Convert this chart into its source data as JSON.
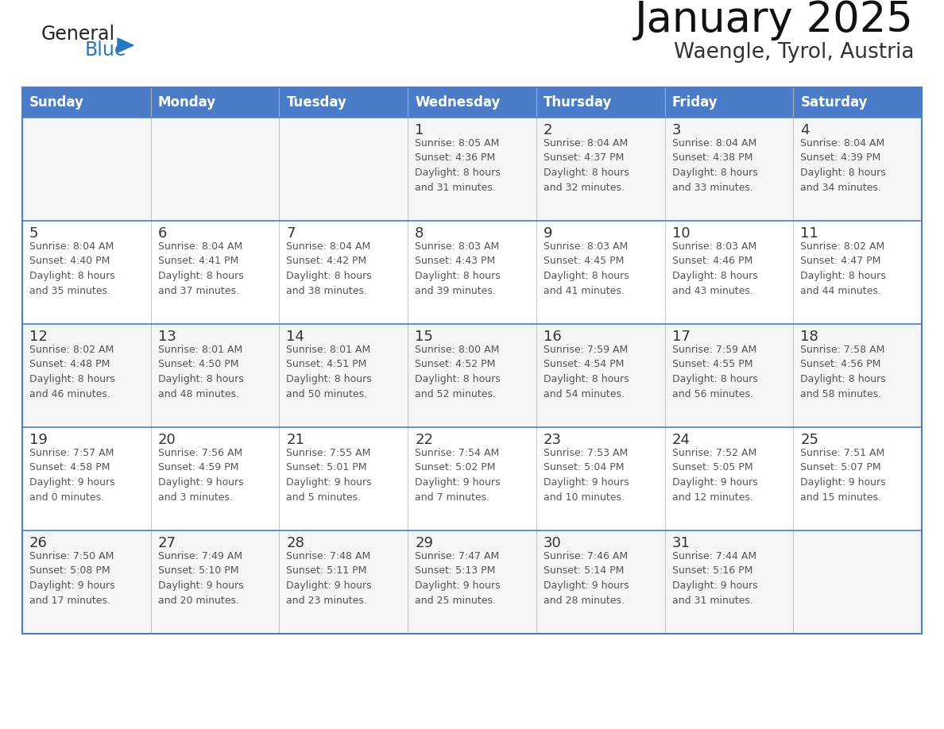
{
  "title": "January 2025",
  "subtitle": "Waengle, Tyrol, Austria",
  "header_color": "#4a7cc7",
  "header_text_color": "#FFFFFF",
  "days_of_week": [
    "Sunday",
    "Monday",
    "Tuesday",
    "Wednesday",
    "Thursday",
    "Friday",
    "Saturday"
  ],
  "background_color": "#FFFFFF",
  "border_color": "#4a7cc7",
  "text_color": "#444444",
  "day_number_color": "#333333",
  "info_text_color": "#555555",
  "logo_general_color": "#222222",
  "logo_blue_color": "#2878C0",
  "logo_triangle_color": "#2878C0",
  "title_color": "#111111",
  "subtitle_color": "#333333",
  "row_bg_colors": [
    "#F5F5F5",
    "#FFFFFF",
    "#F5F5F5",
    "#FFFFFF",
    "#F5F5F5"
  ],
  "calendar_data": [
    [
      {
        "day": "",
        "info": ""
      },
      {
        "day": "",
        "info": ""
      },
      {
        "day": "",
        "info": ""
      },
      {
        "day": "1",
        "info": "Sunrise: 8:05 AM\nSunset: 4:36 PM\nDaylight: 8 hours\nand 31 minutes."
      },
      {
        "day": "2",
        "info": "Sunrise: 8:04 AM\nSunset: 4:37 PM\nDaylight: 8 hours\nand 32 minutes."
      },
      {
        "day": "3",
        "info": "Sunrise: 8:04 AM\nSunset: 4:38 PM\nDaylight: 8 hours\nand 33 minutes."
      },
      {
        "day": "4",
        "info": "Sunrise: 8:04 AM\nSunset: 4:39 PM\nDaylight: 8 hours\nand 34 minutes."
      }
    ],
    [
      {
        "day": "5",
        "info": "Sunrise: 8:04 AM\nSunset: 4:40 PM\nDaylight: 8 hours\nand 35 minutes."
      },
      {
        "day": "6",
        "info": "Sunrise: 8:04 AM\nSunset: 4:41 PM\nDaylight: 8 hours\nand 37 minutes."
      },
      {
        "day": "7",
        "info": "Sunrise: 8:04 AM\nSunset: 4:42 PM\nDaylight: 8 hours\nand 38 minutes."
      },
      {
        "day": "8",
        "info": "Sunrise: 8:03 AM\nSunset: 4:43 PM\nDaylight: 8 hours\nand 39 minutes."
      },
      {
        "day": "9",
        "info": "Sunrise: 8:03 AM\nSunset: 4:45 PM\nDaylight: 8 hours\nand 41 minutes."
      },
      {
        "day": "10",
        "info": "Sunrise: 8:03 AM\nSunset: 4:46 PM\nDaylight: 8 hours\nand 43 minutes."
      },
      {
        "day": "11",
        "info": "Sunrise: 8:02 AM\nSunset: 4:47 PM\nDaylight: 8 hours\nand 44 minutes."
      }
    ],
    [
      {
        "day": "12",
        "info": "Sunrise: 8:02 AM\nSunset: 4:48 PM\nDaylight: 8 hours\nand 46 minutes."
      },
      {
        "day": "13",
        "info": "Sunrise: 8:01 AM\nSunset: 4:50 PM\nDaylight: 8 hours\nand 48 minutes."
      },
      {
        "day": "14",
        "info": "Sunrise: 8:01 AM\nSunset: 4:51 PM\nDaylight: 8 hours\nand 50 minutes."
      },
      {
        "day": "15",
        "info": "Sunrise: 8:00 AM\nSunset: 4:52 PM\nDaylight: 8 hours\nand 52 minutes."
      },
      {
        "day": "16",
        "info": "Sunrise: 7:59 AM\nSunset: 4:54 PM\nDaylight: 8 hours\nand 54 minutes."
      },
      {
        "day": "17",
        "info": "Sunrise: 7:59 AM\nSunset: 4:55 PM\nDaylight: 8 hours\nand 56 minutes."
      },
      {
        "day": "18",
        "info": "Sunrise: 7:58 AM\nSunset: 4:56 PM\nDaylight: 8 hours\nand 58 minutes."
      }
    ],
    [
      {
        "day": "19",
        "info": "Sunrise: 7:57 AM\nSunset: 4:58 PM\nDaylight: 9 hours\nand 0 minutes."
      },
      {
        "day": "20",
        "info": "Sunrise: 7:56 AM\nSunset: 4:59 PM\nDaylight: 9 hours\nand 3 minutes."
      },
      {
        "day": "21",
        "info": "Sunrise: 7:55 AM\nSunset: 5:01 PM\nDaylight: 9 hours\nand 5 minutes."
      },
      {
        "day": "22",
        "info": "Sunrise: 7:54 AM\nSunset: 5:02 PM\nDaylight: 9 hours\nand 7 minutes."
      },
      {
        "day": "23",
        "info": "Sunrise: 7:53 AM\nSunset: 5:04 PM\nDaylight: 9 hours\nand 10 minutes."
      },
      {
        "day": "24",
        "info": "Sunrise: 7:52 AM\nSunset: 5:05 PM\nDaylight: 9 hours\nand 12 minutes."
      },
      {
        "day": "25",
        "info": "Sunrise: 7:51 AM\nSunset: 5:07 PM\nDaylight: 9 hours\nand 15 minutes."
      }
    ],
    [
      {
        "day": "26",
        "info": "Sunrise: 7:50 AM\nSunset: 5:08 PM\nDaylight: 9 hours\nand 17 minutes."
      },
      {
        "day": "27",
        "info": "Sunrise: 7:49 AM\nSunset: 5:10 PM\nDaylight: 9 hours\nand 20 minutes."
      },
      {
        "day": "28",
        "info": "Sunrise: 7:48 AM\nSunset: 5:11 PM\nDaylight: 9 hours\nand 23 minutes."
      },
      {
        "day": "29",
        "info": "Sunrise: 7:47 AM\nSunset: 5:13 PM\nDaylight: 9 hours\nand 25 minutes."
      },
      {
        "day": "30",
        "info": "Sunrise: 7:46 AM\nSunset: 5:14 PM\nDaylight: 9 hours\nand 28 minutes."
      },
      {
        "day": "31",
        "info": "Sunrise: 7:44 AM\nSunset: 5:16 PM\nDaylight: 9 hours\nand 31 minutes."
      },
      {
        "day": "",
        "info": ""
      }
    ]
  ]
}
